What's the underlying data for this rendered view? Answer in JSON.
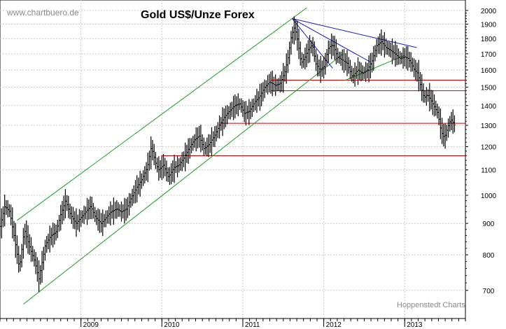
{
  "chart_data": {
    "type": "bar",
    "subtype": "ohlc-weekly",
    "title": "Gold US$/Unze Forex",
    "watermark": "www.chartbuero.de",
    "credit": "Hoppenstedt Charts",
    "yscale": "log",
    "ylim": [
      630,
      2080
    ],
    "y_ticks": [
      700,
      800,
      900,
      1000,
      1100,
      1200,
      1300,
      1400,
      1500,
      1600,
      1700,
      1800,
      1900,
      2000
    ],
    "xlim": [
      2008.0,
      2013.75
    ],
    "x_ticks": [
      {
        "x": 2009.0,
        "label": "2009"
      },
      {
        "x": 2010.0,
        "label": "2010"
      },
      {
        "x": 2011.0,
        "label": "2011"
      },
      {
        "x": 2012.0,
        "label": "2012"
      },
      {
        "x": 2013.0,
        "label": "2013"
      }
    ],
    "grid": true,
    "colors": {
      "price": "#000000",
      "support": "#cc0000",
      "channel": "#1a9e1a",
      "trend": "#1a1acc"
    },
    "price_path": [
      [
        2008.0,
        890
      ],
      [
        2008.06,
        960
      ],
      [
        2008.12,
        940
      ],
      [
        2008.18,
        850
      ],
      [
        2008.24,
        760
      ],
      [
        2008.3,
        880
      ],
      [
        2008.37,
        820
      ],
      [
        2008.43,
        780
      ],
      [
        2008.48,
        730
      ],
      [
        2008.56,
        830
      ],
      [
        2008.63,
        860
      ],
      [
        2008.69,
        870
      ],
      [
        2008.75,
        930
      ],
      [
        2008.81,
        980
      ],
      [
        2008.87,
        930
      ],
      [
        2008.94,
        900
      ],
      [
        2009.0,
        920
      ],
      [
        2009.06,
        940
      ],
      [
        2009.12,
        960
      ],
      [
        2009.18,
        920
      ],
      [
        2009.25,
        900
      ],
      [
        2009.31,
        920
      ],
      [
        2009.37,
        940
      ],
      [
        2009.44,
        950
      ],
      [
        2009.5,
        940
      ],
      [
        2009.56,
        950
      ],
      [
        2009.62,
        990
      ],
      [
        2009.69,
        1030
      ],
      [
        2009.75,
        1060
      ],
      [
        2009.82,
        1110
      ],
      [
        2009.87,
        1200
      ],
      [
        2009.92,
        1130
      ],
      [
        2009.96,
        1100
      ],
      [
        2010.02,
        1120
      ],
      [
        2010.08,
        1070
      ],
      [
        2010.15,
        1110
      ],
      [
        2010.21,
        1120
      ],
      [
        2010.27,
        1150
      ],
      [
        2010.33,
        1190
      ],
      [
        2010.4,
        1230
      ],
      [
        2010.46,
        1250
      ],
      [
        2010.52,
        1190
      ],
      [
        2010.58,
        1210
      ],
      [
        2010.65,
        1250
      ],
      [
        2010.71,
        1300
      ],
      [
        2010.77,
        1340
      ],
      [
        2010.83,
        1370
      ],
      [
        2010.9,
        1400
      ],
      [
        2010.96,
        1410
      ],
      [
        2011.02,
        1360
      ],
      [
        2011.08,
        1370
      ],
      [
        2011.15,
        1420
      ],
      [
        2011.21,
        1450
      ],
      [
        2011.27,
        1500
      ],
      [
        2011.33,
        1530
      ],
      [
        2011.4,
        1510
      ],
      [
        2011.46,
        1520
      ],
      [
        2011.52,
        1590
      ],
      [
        2011.56,
        1680
      ],
      [
        2011.6,
        1820
      ],
      [
        2011.64,
        1880
      ],
      [
        2011.68,
        1780
      ],
      [
        2011.72,
        1640
      ],
      [
        2011.77,
        1680
      ],
      [
        2011.81,
        1730
      ],
      [
        2011.86,
        1760
      ],
      [
        2011.9,
        1640
      ],
      [
        2011.95,
        1600
      ],
      [
        2012.0,
        1620
      ],
      [
        2012.06,
        1740
      ],
      [
        2012.11,
        1760
      ],
      [
        2012.17,
        1680
      ],
      [
        2012.23,
        1660
      ],
      [
        2012.29,
        1640
      ],
      [
        2012.35,
        1560
      ],
      [
        2012.42,
        1600
      ],
      [
        2012.48,
        1580
      ],
      [
        2012.54,
        1600
      ],
      [
        2012.6,
        1660
      ],
      [
        2012.65,
        1750
      ],
      [
        2012.71,
        1780
      ],
      [
        2012.77,
        1740
      ],
      [
        2012.83,
        1720
      ],
      [
        2012.88,
        1700
      ],
      [
        2012.94,
        1670
      ],
      [
        2013.0,
        1680
      ],
      [
        2013.04,
        1670
      ],
      [
        2013.08,
        1640
      ],
      [
        2013.12,
        1600
      ],
      [
        2013.16,
        1580
      ],
      [
        2013.2,
        1500
      ],
      [
        2013.24,
        1440
      ],
      [
        2013.28,
        1460
      ],
      [
        2013.32,
        1430
      ],
      [
        2013.37,
        1390
      ],
      [
        2013.41,
        1360
      ],
      [
        2013.45,
        1270
      ],
      [
        2013.49,
        1240
      ],
      [
        2013.53,
        1290
      ],
      [
        2013.57,
        1330
      ],
      [
        2013.62,
        1300
      ]
    ],
    "annotations": [
      {
        "kind": "hline",
        "y": 1160,
        "x": [
          2010.0,
          2013.75
        ],
        "color": "support"
      },
      {
        "kind": "hline",
        "y": 1310,
        "x": [
          2010.72,
          2013.75
        ],
        "color": "support"
      },
      {
        "kind": "hline",
        "y": 1480,
        "x": [
          2011.35,
          2013.75
        ],
        "color": "support"
      },
      {
        "kind": "hline",
        "y": 1540,
        "x": [
          2011.35,
          2013.75
        ],
        "color": "support"
      },
      {
        "kind": "line",
        "from": [
          2008.21,
          910
        ],
        "to": [
          2011.79,
          2020
        ],
        "color": "channel"
      },
      {
        "kind": "line",
        "from": [
          2008.29,
          665
        ],
        "to": [
          2012.24,
          1700
        ],
        "color": "channel"
      },
      {
        "kind": "line",
        "from": [
          2012.27,
          1540
        ],
        "to": [
          2013.0,
          1690
        ],
        "color": "channel"
      },
      {
        "kind": "line",
        "from": [
          2011.61,
          1940
        ],
        "to": [
          2012.11,
          1610
        ],
        "color": "trend"
      },
      {
        "kind": "line",
        "from": [
          2011.61,
          1940
        ],
        "to": [
          2012.57,
          1650
        ],
        "color": "trend"
      },
      {
        "kind": "line",
        "from": [
          2011.61,
          1940
        ],
        "to": [
          2013.15,
          1740
        ],
        "color": "trend"
      }
    ]
  }
}
